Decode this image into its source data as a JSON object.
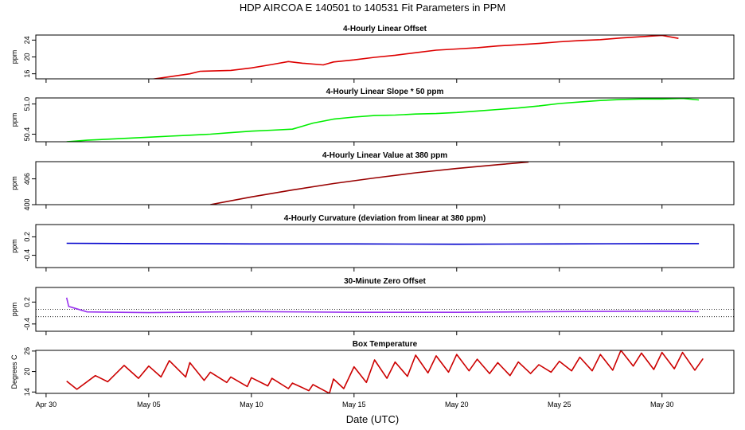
{
  "title": "HDP    AIRCOA E    140501 to 140531    Fit Parameters in PPM",
  "xlabel": "Date (UTC)",
  "x_ticks": [
    "Apr 30",
    "May 05",
    "May 10",
    "May 15",
    "May 20",
    "May 25",
    "May 30"
  ],
  "x_tick_days": [
    0,
    5,
    10,
    15,
    20,
    25,
    30
  ],
  "x_range_days": [
    -0.5,
    33.5
  ],
  "colors": {
    "red": "#dd0000",
    "green": "#00ee00",
    "darkred": "#990000",
    "blue": "#0000cc",
    "purple": "#9933ee",
    "temp": "#cc0000"
  },
  "chart_data": [
    {
      "type": "line",
      "title": "4-Hourly Linear Offset",
      "ylabel": "ppm",
      "y_ticks": [
        16,
        20,
        24
      ],
      "ylim": [
        14.8,
        25.2
      ],
      "series": [
        {
          "name": "offset",
          "color": "red",
          "points": [
            [
              5.0,
              14.6
            ],
            [
              6.0,
              15.3
            ],
            [
              7.0,
              16.0
            ],
            [
              7.5,
              16.6
            ],
            [
              9.0,
              16.8
            ],
            [
              10.0,
              17.4
            ],
            [
              11.0,
              18.2
            ],
            [
              11.8,
              18.9
            ],
            [
              12.5,
              18.5
            ],
            [
              13.5,
              18.1
            ],
            [
              14.0,
              18.8
            ],
            [
              15.0,
              19.3
            ],
            [
              16.0,
              19.9
            ],
            [
              17.0,
              20.4
            ],
            [
              18.0,
              21.0
            ],
            [
              19.0,
              21.6
            ],
            [
              20.0,
              21.9
            ],
            [
              21.0,
              22.2
            ],
            [
              22.0,
              22.6
            ],
            [
              23.0,
              22.9
            ],
            [
              24.0,
              23.2
            ],
            [
              25.0,
              23.6
            ],
            [
              26.0,
              23.9
            ],
            [
              27.0,
              24.1
            ],
            [
              28.0,
              24.5
            ],
            [
              29.0,
              24.8
            ],
            [
              30.0,
              25.1
            ],
            [
              30.8,
              24.4
            ]
          ]
        }
      ]
    },
    {
      "type": "line",
      "title": "4-Hourly Linear Slope * 50 ppm",
      "ylabel": "ppm",
      "y_ticks": [
        50.4,
        51.0
      ],
      "y_tick_labels": [
        "50.4",
        "51.0"
      ],
      "ylim": [
        50.25,
        51.12
      ],
      "series": [
        {
          "name": "slope",
          "color": "green",
          "points": [
            [
              1.0,
              50.25
            ],
            [
              2.0,
              50.28
            ],
            [
              3.0,
              50.3
            ],
            [
              4.0,
              50.32
            ],
            [
              5.0,
              50.34
            ],
            [
              6.0,
              50.36
            ],
            [
              7.0,
              50.38
            ],
            [
              8.0,
              50.4
            ],
            [
              9.0,
              50.43
            ],
            [
              10.0,
              50.46
            ],
            [
              11.0,
              50.48
            ],
            [
              12.0,
              50.5
            ],
            [
              13.0,
              50.62
            ],
            [
              14.0,
              50.7
            ],
            [
              15.0,
              50.74
            ],
            [
              16.0,
              50.77
            ],
            [
              17.0,
              50.78
            ],
            [
              18.0,
              50.8
            ],
            [
              19.0,
              50.81
            ],
            [
              20.0,
              50.83
            ],
            [
              21.0,
              50.86
            ],
            [
              22.0,
              50.89
            ],
            [
              23.0,
              50.92
            ],
            [
              24.0,
              50.96
            ],
            [
              25.0,
              51.01
            ],
            [
              26.0,
              51.04
            ],
            [
              27.0,
              51.07
            ],
            [
              28.0,
              51.09
            ],
            [
              29.0,
              51.1
            ],
            [
              30.0,
              51.1
            ],
            [
              31.0,
              51.11
            ],
            [
              31.8,
              51.08
            ]
          ]
        }
      ]
    },
    {
      "type": "line",
      "title": "4-Hourly Linear Value at 380 ppm",
      "ylabel": "ppm",
      "y_ticks": [
        400,
        406
      ],
      "ylim": [
        400,
        410
      ],
      "series": [
        {
          "name": "value",
          "color": "darkred",
          "points": [
            [
              8.0,
              400.0
            ],
            [
              10.0,
              401.8
            ],
            [
              12.0,
              403.4
            ],
            [
              14.0,
              404.9
            ],
            [
              16.0,
              406.2
            ],
            [
              18.0,
              407.4
            ],
            [
              20.0,
              408.4
            ],
            [
              22.0,
              409.3
            ],
            [
              23.5,
              409.9
            ]
          ]
        }
      ]
    },
    {
      "type": "line",
      "title": "4-Hourly Curvature (deviation from linear at 380 ppm)",
      "ylabel": "ppm",
      "y_ticks": [
        -0.4,
        0.2
      ],
      "y_tick_labels": [
        "-0.4",
        "0.2"
      ],
      "ylim": [
        -0.8,
        0.6
      ],
      "series": [
        {
          "name": "curvature",
          "color": "blue",
          "points": [
            [
              1.0,
              -0.01
            ],
            [
              5.0,
              -0.02
            ],
            [
              10.0,
              -0.03
            ],
            [
              15.0,
              -0.03
            ],
            [
              20.0,
              -0.04
            ],
            [
              25.0,
              -0.03
            ],
            [
              30.0,
              -0.02
            ],
            [
              31.8,
              -0.02
            ]
          ]
        }
      ]
    },
    {
      "type": "line",
      "title": "30-Minute Zero Offset",
      "ylabel": "ppm",
      "y_ticks": [
        -0.4,
        0.2
      ],
      "y_tick_labels": [
        "-0.4",
        "0.2"
      ],
      "ylim": [
        -0.6,
        0.6
      ],
      "ref_lines": [
        0.0,
        -0.2
      ],
      "series": [
        {
          "name": "zero",
          "color": "purple",
          "points": [
            [
              1.0,
              0.32
            ],
            [
              1.1,
              0.08
            ],
            [
              2.0,
              -0.07
            ],
            [
              5.0,
              -0.09
            ],
            [
              10.0,
              -0.06
            ],
            [
              15.0,
              -0.08
            ],
            [
              20.0,
              -0.08
            ],
            [
              25.0,
              -0.06
            ],
            [
              30.0,
              -0.05
            ],
            [
              31.8,
              -0.06
            ]
          ]
        }
      ]
    },
    {
      "type": "line",
      "title": "Box Temperature",
      "ylabel": "Degrees C",
      "y_ticks": [
        14,
        20,
        26
      ],
      "ylim": [
        13.6,
        26.2
      ],
      "series": [
        {
          "name": "temperature",
          "color": "temp",
          "points": [
            [
              1.0,
              17.2
            ],
            [
              1.5,
              14.8
            ],
            [
              2.4,
              18.8
            ],
            [
              3.0,
              17.0
            ],
            [
              3.8,
              21.8
            ],
            [
              4.5,
              18.0
            ],
            [
              5.0,
              21.6
            ],
            [
              5.6,
              18.4
            ],
            [
              6.0,
              23.2
            ],
            [
              6.8,
              18.4
            ],
            [
              7.0,
              22.6
            ],
            [
              7.7,
              17.4
            ],
            [
              8.0,
              19.8
            ],
            [
              8.8,
              16.8
            ],
            [
              9.0,
              18.4
            ],
            [
              9.8,
              15.6
            ],
            [
              10.0,
              18.2
            ],
            [
              10.8,
              15.8
            ],
            [
              11.0,
              18.0
            ],
            [
              11.8,
              15.0
            ],
            [
              12.0,
              16.6
            ],
            [
              12.8,
              14.4
            ],
            [
              13.0,
              16.2
            ],
            [
              13.8,
              13.6
            ],
            [
              14.0,
              17.8
            ],
            [
              14.5,
              15.0
            ],
            [
              15.0,
              21.4
            ],
            [
              15.6,
              16.8
            ],
            [
              16.0,
              23.4
            ],
            [
              16.6,
              18.0
            ],
            [
              17.0,
              22.8
            ],
            [
              17.6,
              18.6
            ],
            [
              18.0,
              24.8
            ],
            [
              18.6,
              19.6
            ],
            [
              19.0,
              24.6
            ],
            [
              19.6,
              19.8
            ],
            [
              20.0,
              25.0
            ],
            [
              20.6,
              20.2
            ],
            [
              21.0,
              23.6
            ],
            [
              21.6,
              19.4
            ],
            [
              22.0,
              22.6
            ],
            [
              22.6,
              18.8
            ],
            [
              23.0,
              22.8
            ],
            [
              23.6,
              19.4
            ],
            [
              24.0,
              22.0
            ],
            [
              24.6,
              19.8
            ],
            [
              25.0,
              23.0
            ],
            [
              25.6,
              20.2
            ],
            [
              26.0,
              24.2
            ],
            [
              26.6,
              20.2
            ],
            [
              27.0,
              25.0
            ],
            [
              27.6,
              20.4
            ],
            [
              28.0,
              26.2
            ],
            [
              28.6,
              21.6
            ],
            [
              29.0,
              25.4
            ],
            [
              29.6,
              20.6
            ],
            [
              30.0,
              25.6
            ],
            [
              30.6,
              20.8
            ],
            [
              31.0,
              25.6
            ],
            [
              31.6,
              20.4
            ],
            [
              32.0,
              23.8
            ]
          ]
        }
      ]
    }
  ]
}
